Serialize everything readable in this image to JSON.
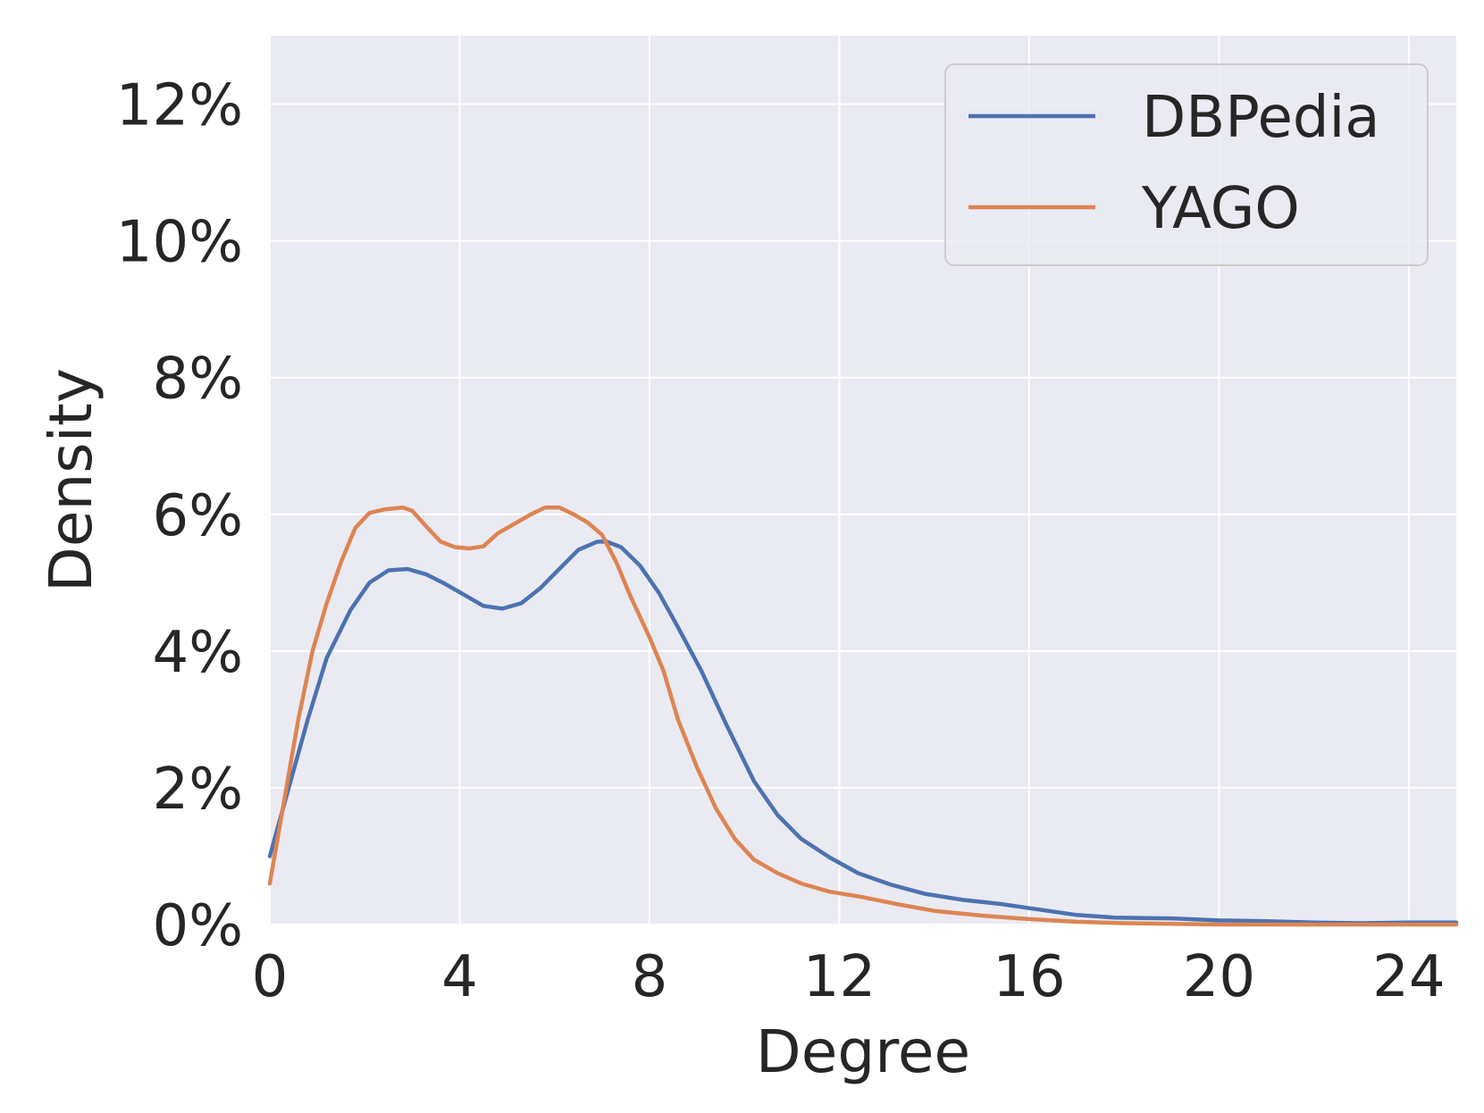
{
  "chart_data": {
    "type": "line",
    "xlabel": "Degree",
    "ylabel": "Density",
    "xlim": [
      0,
      25
    ],
    "ylim": [
      0,
      13
    ],
    "x_ticks": [
      0,
      4,
      8,
      12,
      16,
      20,
      24
    ],
    "x_tick_labels": [
      "0",
      "4",
      "8",
      "12",
      "16",
      "20",
      "24"
    ],
    "y_ticks": [
      0,
      2,
      4,
      6,
      8,
      10,
      12
    ],
    "y_tick_labels": [
      "0%",
      "2%",
      "4%",
      "6%",
      "8%",
      "10%",
      "12%"
    ],
    "grid": true,
    "legend_position": "top-right",
    "background_color": "#EAEAF2",
    "series": [
      {
        "name": "DBPedia",
        "color": "#4C72B0",
        "x": [
          0,
          0.4,
          0.8,
          1.2,
          1.7,
          2.1,
          2.5,
          2.9,
          3.3,
          3.7,
          4.1,
          4.5,
          4.9,
          5.3,
          5.7,
          6.1,
          6.5,
          6.9,
          7.1,
          7.4,
          7.8,
          8.2,
          8.6,
          9.1,
          9.6,
          10.2,
          10.7,
          11.2,
          11.8,
          12.4,
          13.1,
          13.8,
          14.6,
          15.4,
          16.2,
          17.0,
          17.8,
          19.0,
          20.0,
          21.0,
          22.0,
          23.0,
          24.0,
          25.0
        ],
        "y": [
          1.0,
          2.0,
          3.0,
          3.9,
          4.6,
          5.0,
          5.18,
          5.2,
          5.12,
          4.98,
          4.82,
          4.66,
          4.62,
          4.7,
          4.92,
          5.2,
          5.48,
          5.6,
          5.6,
          5.52,
          5.25,
          4.85,
          4.35,
          3.7,
          2.95,
          2.1,
          1.6,
          1.25,
          0.98,
          0.75,
          0.58,
          0.45,
          0.36,
          0.3,
          0.22,
          0.14,
          0.1,
          0.09,
          0.06,
          0.05,
          0.03,
          0.02,
          0.03,
          0.03
        ]
      },
      {
        "name": "YAGO",
        "color": "#DD8452",
        "x": [
          0,
          0.3,
          0.6,
          0.9,
          1.2,
          1.5,
          1.8,
          2.1,
          2.4,
          2.8,
          3.0,
          3.3,
          3.6,
          3.9,
          4.2,
          4.5,
          4.8,
          5.2,
          5.5,
          5.8,
          6.1,
          6.4,
          6.7,
          7.0,
          7.3,
          7.6,
          8.0,
          8.3,
          8.6,
          9.0,
          9.4,
          9.8,
          10.2,
          10.7,
          11.2,
          11.8,
          12.5,
          13.2,
          14.0,
          15.0,
          16.0,
          17.0,
          18.0,
          19.0,
          20.0,
          22.0,
          25.0
        ],
        "y": [
          0.6,
          1.8,
          3.0,
          4.0,
          4.7,
          5.3,
          5.8,
          6.02,
          6.07,
          6.1,
          6.05,
          5.82,
          5.6,
          5.52,
          5.5,
          5.53,
          5.72,
          5.88,
          6.0,
          6.1,
          6.1,
          6.0,
          5.88,
          5.7,
          5.3,
          4.8,
          4.2,
          3.7,
          3.0,
          2.3,
          1.7,
          1.25,
          0.95,
          0.75,
          0.6,
          0.48,
          0.4,
          0.3,
          0.2,
          0.13,
          0.08,
          0.04,
          0.02,
          0.01,
          0.0,
          0.0,
          0.0
        ]
      }
    ]
  }
}
